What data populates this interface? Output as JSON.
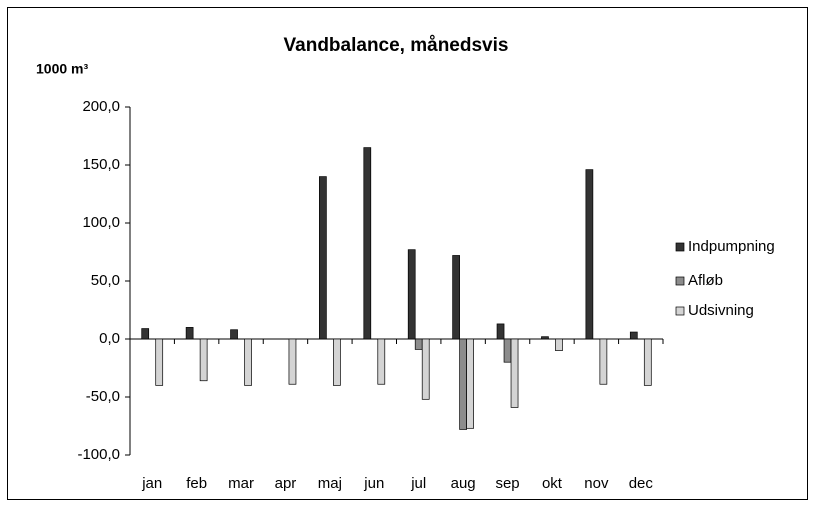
{
  "chart_data": {
    "type": "bar",
    "title": "Vandbalance, månedsvis",
    "y_label": "1000 m³",
    "categories": [
      "jan",
      "feb",
      "mar",
      "apr",
      "maj",
      "jun",
      "jul",
      "aug",
      "sep",
      "okt",
      "nov",
      "dec"
    ],
    "series": [
      {
        "name": "Indpumpning",
        "color": "#333333",
        "values": [
          9,
          10,
          8,
          null,
          140,
          165,
          77,
          72,
          13,
          2,
          146,
          6
        ]
      },
      {
        "name": "Afløb",
        "color": "#8c8c8c",
        "values": [
          null,
          null,
          null,
          null,
          null,
          null,
          -9,
          -78,
          -20,
          null,
          null,
          null
        ]
      },
      {
        "name": "Udsivning",
        "color": "#d4d4d4",
        "values": [
          -40,
          -36,
          -40,
          -39,
          -40,
          -39,
          -52,
          -77,
          -59,
          -10,
          -39,
          -40
        ]
      }
    ],
    "ylim": [
      -100,
      200
    ],
    "yticks": [
      {
        "value": -100,
        "label": "-100,0"
      },
      {
        "value": -50,
        "label": "-50,0"
      },
      {
        "value": 0,
        "label": "0,0"
      },
      {
        "value": 50,
        "label": "50,0"
      },
      {
        "value": 100,
        "label": "100,0"
      },
      {
        "value": 150,
        "label": "150,0"
      },
      {
        "value": 200,
        "label": "200,0"
      }
    ],
    "legend": "right"
  }
}
